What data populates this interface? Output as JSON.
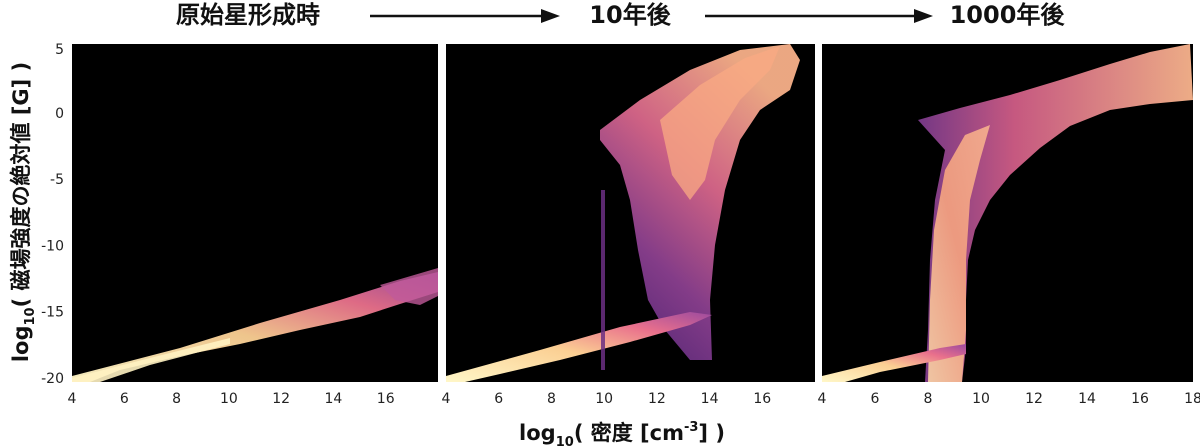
{
  "chart_data": {
    "type": "heatmap",
    "stages": [
      {
        "label": "原始星形成時"
      },
      {
        "label": "10年後"
      },
      {
        "label": "1000年後"
      }
    ],
    "xlabel": {
      "main": "log",
      "sub": "10",
      "rest": "( 密度 [cm",
      "sup": "-3",
      "end": "] )"
    },
    "ylabel": {
      "main": "log",
      "sub": "10",
      "rest": "( 磁場強度の絶対値 [G] )"
    },
    "yticks": [
      "5",
      "0",
      "-5",
      "-10",
      "-15",
      "-20"
    ],
    "ytick_values": [
      5,
      0,
      -5,
      -10,
      -15,
      -20
    ],
    "ylim": [
      -20.3,
      5.2
    ],
    "panels": [
      {
        "xlim": [
          4,
          18
        ],
        "xticks": [
          "4",
          "6",
          "8",
          "10",
          "12",
          "14",
          "16"
        ],
        "xtick_values": [
          4,
          6,
          8,
          10,
          12,
          14,
          16
        ],
        "regions": [
          {
            "x": [
              4.2,
              18
            ],
            "y_lo": [
              -20.2,
              -13.4
            ],
            "y_hi": [
              -19.7,
              -12.2
            ],
            "color": "#fde8b8"
          }
        ]
      },
      {
        "xlim": [
          4,
          18
        ],
        "xticks": [
          "4",
          "6",
          "8",
          "10",
          "12",
          "14",
          "16"
        ],
        "xtick_values": [
          4,
          6,
          8,
          10,
          12,
          14,
          16
        ],
        "regions": [
          {
            "x": [
              10,
              16.5
            ],
            "y_lo": [
              -16,
              -8
            ],
            "y_hi": [
              -2,
              5
            ],
            "color": "#7a3a8c"
          },
          {
            "x": [
              4.2,
              14.3
            ],
            "y_lo": [
              -20.2,
              -15.5
            ],
            "y_hi": [
              -19.7,
              -15
            ],
            "color": "#fde8b8"
          }
        ]
      },
      {
        "xlim": [
          4,
          18
        ],
        "xticks": [
          "4",
          "6",
          "8",
          "10",
          "12",
          "14",
          "16",
          "18"
        ],
        "xtick_values": [
          4,
          6,
          8,
          10,
          12,
          14,
          16,
          18
        ],
        "regions": [
          {
            "x": [
              7.8,
              18
            ],
            "y_lo": [
              -20.2,
              -1
            ],
            "y_hi": [
              -1,
              5
            ],
            "color": "#f4a27a"
          },
          {
            "x": [
              4.2,
              9.5
            ],
            "y_lo": [
              -20.2,
              -17.8
            ],
            "y_hi": [
              -19.7,
              -17.4
            ],
            "color": "#fde8b8"
          }
        ]
      }
    ]
  }
}
